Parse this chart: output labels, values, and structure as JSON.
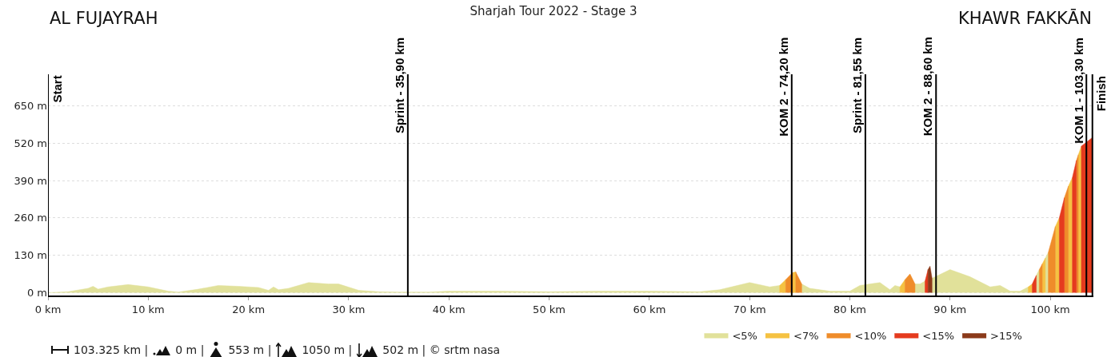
{
  "chart_data": {
    "type": "area",
    "title": "Sharjah Tour 2022 - Stage 3",
    "annotations": [
      "AL FUJAYRAH",
      "KHAWR FAKKĀN",
      "103.325 km |",
      "0 m |",
      "553 m |",
      "1050 m |",
      "502 m | © srtm nasa"
    ],
    "series": [
      {
        "name": "<5%",
        "color": "#e1e19a",
        "x": [
          0,
          2,
          4,
          4.5,
          5,
          6,
          8,
          10,
          12,
          13,
          15,
          17,
          19,
          21,
          22,
          22.5,
          23,
          24,
          26,
          28,
          29,
          31,
          33,
          35,
          38,
          40,
          45,
          50,
          55,
          60,
          65,
          67,
          70,
          72,
          73,
          null,
          75.2,
          76,
          78,
          80,
          81,
          82,
          83,
          84,
          84.5,
          85,
          null,
          86.5,
          87,
          87.5,
          null,
          88.2,
          90,
          92,
          94,
          95,
          96,
          97,
          97.8,
          null,
          98.6,
          98.9,
          null,
          99.5,
          99.8
        ],
        "values": [
          0,
          3,
          15,
          22,
          12,
          20,
          28,
          20,
          5,
          2,
          12,
          25,
          22,
          18,
          8,
          20,
          10,
          15,
          35,
          30,
          30,
          8,
          3,
          2,
          2,
          5,
          5,
          3,
          5,
          5,
          3,
          10,
          35,
          20,
          25,
          null,
          30,
          15,
          5,
          5,
          25,
          30,
          35,
          10,
          25,
          20,
          null,
          30,
          30,
          40,
          null,
          50,
          80,
          55,
          20,
          25,
          5,
          5,
          20,
          null,
          60,
          80,
          null,
          120,
          140
        ]
      },
      {
        "name": "<7%",
        "color": "#f5c242",
        "x": [
          73,
          73.6,
          null,
          74.3,
          74.6,
          null,
          85,
          85.5,
          null,
          97.8,
          98.2,
          null,
          99.2,
          99.5,
          null,
          100.5,
          100.9,
          null,
          101.8,
          102.2,
          null,
          102.8,
          103.1
        ],
        "values": [
          25,
          45,
          null,
          70,
          72,
          null,
          20,
          45,
          null,
          20,
          30,
          null,
          100,
          120,
          null,
          230,
          260,
          null,
          370,
          400,
          null,
          480,
          510
        ]
      },
      {
        "name": "<10%",
        "color": "#ef8c2a",
        "x": [
          73.6,
          74.3,
          null,
          74.6,
          75.2,
          null,
          85.5,
          86,
          86.5,
          null,
          98.9,
          99.2,
          null,
          99.8,
          100.5,
          null,
          101.4,
          101.8,
          null,
          102.6,
          102.8
        ],
        "values": [
          45,
          70,
          null,
          72,
          30,
          null,
          45,
          65,
          30,
          null,
          80,
          100,
          null,
          140,
          230,
          null,
          330,
          370,
          null,
          460,
          480
        ]
      },
      {
        "name": "<15%",
        "color": "#e53b1e",
        "x": [
          87.5,
          87.8,
          null,
          98.2,
          98.6,
          null,
          100.9,
          101.4,
          null,
          102.2,
          102.6,
          null,
          103.1,
          104.2
        ],
        "values": [
          40,
          80,
          null,
          30,
          60,
          null,
          260,
          330,
          null,
          400,
          460,
          null,
          510,
          540
        ]
      },
      {
        "name": ">15%",
        "color": "#8b3a1a",
        "x": [
          87.8,
          88,
          88.2
        ],
        "values": [
          80,
          92,
          50
        ]
      }
    ],
    "xlim": [
      0,
      104.3
    ],
    "xticks": [
      {
        "value": 0,
        "label": "0 km"
      },
      {
        "value": 10,
        "label": "10 km"
      },
      {
        "value": 20,
        "label": "20 km"
      },
      {
        "value": 30,
        "label": "30 km"
      },
      {
        "value": 40,
        "label": "40 km"
      },
      {
        "value": 50,
        "label": "50 km"
      },
      {
        "value": 60,
        "label": "60 km"
      },
      {
        "value": 70,
        "label": "70 km"
      },
      {
        "value": 80,
        "label": "80 km"
      },
      {
        "value": 90,
        "label": "90 km"
      },
      {
        "value": 100,
        "label": "100 km"
      }
    ],
    "ylim": [
      -10,
      760
    ],
    "yticks": [
      {
        "value": 0,
        "label": "0 m"
      },
      {
        "value": 130,
        "label": "130 m"
      },
      {
        "value": 260,
        "label": "260 m"
      },
      {
        "value": 390,
        "label": "390 m"
      },
      {
        "value": 520,
        "label": "520 m"
      },
      {
        "value": 650,
        "label": "650 m"
      }
    ],
    "ref_lines": [
      {
        "axis": "x",
        "value": 0,
        "label": "Start"
      },
      {
        "axis": "x",
        "value": 35.9,
        "label": "Sprint - 35,90 km"
      },
      {
        "axis": "x",
        "value": 74.2,
        "label": "KOM 2 - 74,20 km"
      },
      {
        "axis": "x",
        "value": 81.55,
        "label": "Sprint - 81,55 km"
      },
      {
        "axis": "x",
        "value": 88.6,
        "label": "KOM 2 - 88,60 km"
      },
      {
        "axis": "x",
        "value": 103.6,
        "label": "KOM 1 - 103,30 km"
      },
      {
        "axis": "x",
        "value": 104.2,
        "label": "Finish"
      }
    ],
    "grid": "y",
    "legend": "bottom"
  }
}
